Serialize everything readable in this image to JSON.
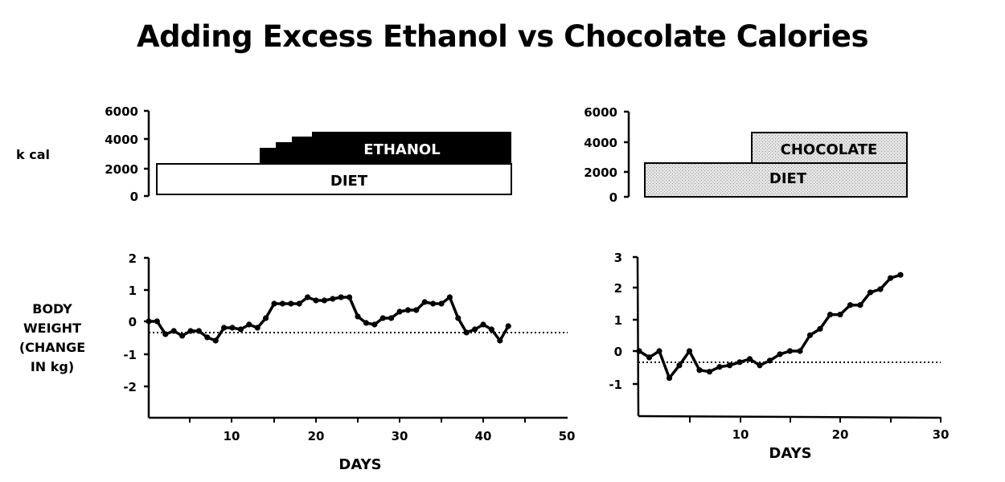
{
  "title": "Adding Excess Ethanol vs Chocolate Calories",
  "left_panel": {
    "kcal_label": "k cal",
    "kcal_ticks": [
      "6000",
      "4000",
      "2000",
      "0"
    ],
    "diet_label": "DIET",
    "supplement_label": "ETHANOL",
    "weight_label_lines": [
      "BODY",
      "WEIGHT",
      "(CHANGE",
      "IN kg)"
    ],
    "weight_ticks": [
      "2",
      "1",
      "0",
      "-1",
      "-2"
    ],
    "x_ticks": [
      "10",
      "20",
      "30",
      "40",
      "50"
    ],
    "x_label": "DAYS"
  },
  "right_panel": {
    "kcal_ticks": [
      "6000",
      "4000",
      "2000",
      "0"
    ],
    "diet_label": "DIET",
    "supplement_label": "CHOCOLATE",
    "weight_ticks": [
      "3",
      "2",
      "1",
      "0",
      "-1"
    ],
    "x_ticks": [
      "10",
      "20",
      "30"
    ],
    "x_label": "DAYS"
  },
  "colors": {
    "ink": "#000000",
    "diet_fill_left": "#ffffff",
    "ethanol_fill": "#000000",
    "chocolate_fill": "#d9d9d9",
    "diet_fill_right": "#d9d9d9"
  },
  "chart_data": [
    {
      "type": "area",
      "title": "Ethanol: caloric intake",
      "ylabel": "k cal",
      "ylim": [
        0,
        6000
      ],
      "xlim": [
        0,
        50
      ],
      "series": [
        {
          "name": "DIET",
          "x": [
            1,
            43.5
          ],
          "values": [
            2300,
            2300
          ]
        },
        {
          "name": "ETHANOL (total)",
          "x": [
            13,
            15,
            17,
            19,
            43.5
          ],
          "values": [
            3400,
            3800,
            4100,
            4400,
            4400
          ]
        }
      ]
    },
    {
      "type": "line",
      "title": "Ethanol: body weight change",
      "xlabel": "DAYS",
      "ylabel": "BODY WEIGHT (CHANGE IN kg)",
      "xlim": [
        0,
        50
      ],
      "ylim": [
        -3,
        2
      ],
      "reference_line": -0.35,
      "x": [
        0,
        1,
        2,
        3,
        4,
        5,
        6,
        7,
        8,
        9,
        10,
        11,
        12,
        13,
        14,
        15,
        16,
        17,
        18,
        19,
        20,
        21,
        22,
        23,
        24,
        25,
        26,
        27,
        28,
        29,
        30,
        31,
        32,
        33,
        34,
        35,
        36,
        37,
        38,
        39,
        40,
        41,
        42,
        43
      ],
      "values": [
        0,
        0,
        -0.4,
        -0.3,
        -0.45,
        -0.3,
        -0.3,
        -0.5,
        -0.6,
        -0.2,
        -0.2,
        -0.25,
        -0.1,
        -0.2,
        0.1,
        0.55,
        0.55,
        0.55,
        0.55,
        0.75,
        0.65,
        0.65,
        0.7,
        0.75,
        0.75,
        0.15,
        -0.05,
        -0.1,
        0.1,
        0.1,
        0.3,
        0.35,
        0.35,
        0.6,
        0.55,
        0.55,
        0.75,
        0.1,
        -0.35,
        -0.25,
        -0.1,
        -0.25,
        -0.6,
        -0.15
      ]
    },
    {
      "type": "area",
      "title": "Chocolate: caloric intake",
      "ylabel": "k cal",
      "ylim": [
        0,
        6000
      ],
      "xlim": [
        0,
        30
      ],
      "series": [
        {
          "name": "DIET",
          "x": [
            0.5,
            26.5
          ],
          "values": [
            2500,
            2500
          ]
        },
        {
          "name": "CHOCOLATE (total)",
          "x": [
            11,
            26.5
          ],
          "values": [
            4500,
            4500
          ]
        }
      ]
    },
    {
      "type": "line",
      "title": "Chocolate: body weight change",
      "xlabel": "DAYS",
      "xlim": [
        0,
        30
      ],
      "ylim": [
        -2,
        3
      ],
      "reference_line": -0.35,
      "x": [
        0,
        1,
        2,
        3,
        4,
        5,
        6,
        7,
        8,
        9,
        10,
        11,
        12,
        13,
        14,
        15,
        16,
        17,
        18,
        19,
        20,
        21,
        22,
        23,
        24,
        25,
        26
      ],
      "values": [
        0,
        -0.2,
        0,
        -0.85,
        -0.45,
        0,
        -0.6,
        -0.65,
        -0.5,
        -0.45,
        -0.35,
        -0.25,
        -0.45,
        -0.3,
        -0.1,
        0,
        0,
        0.5,
        0.7,
        1.15,
        1.15,
        1.45,
        1.45,
        1.85,
        1.95,
        2.3,
        2.4
      ]
    }
  ]
}
